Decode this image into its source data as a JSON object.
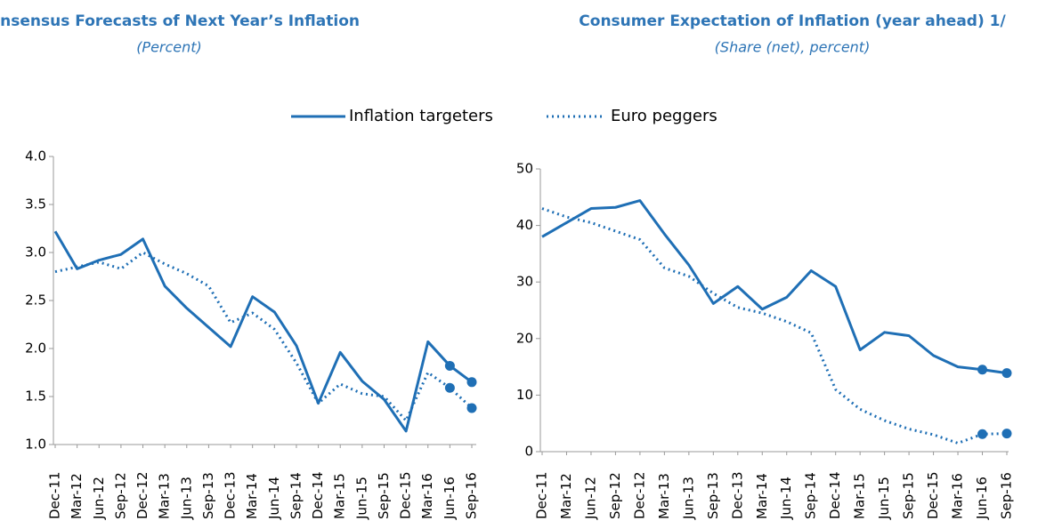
{
  "chart_data": [
    {
      "type": "line",
      "title": "Consensus Forecasts of Next Year’s Inflation",
      "subtitle": "(Percent)",
      "categories": [
        "Dec-11",
        "Mar-12",
        "Jun-12",
        "Sep-12",
        "Dec-12",
        "Mar-13",
        "Jun-13",
        "Sep-13",
        "Dec-13",
        "Mar-14",
        "Jun-14",
        "Sep-14",
        "Dec-14",
        "Mar-15",
        "Jun-15",
        "Sep-15",
        "Dec-15",
        "Mar-16",
        "Jun-16",
        "Sep-16"
      ],
      "series": [
        {
          "name": "Inflation targeters",
          "color": "#1f6fb5",
          "style": "solid",
          "values": [
            3.22,
            2.83,
            2.92,
            2.98,
            3.14,
            2.65,
            2.42,
            2.22,
            2.02,
            2.54,
            2.38,
            2.03,
            1.43,
            1.96,
            1.66,
            1.47,
            1.14,
            2.07,
            1.82,
            1.65
          ]
        },
        {
          "name": "Euro peggers",
          "color": "#1f6fb5",
          "style": "dotted",
          "values": [
            2.8,
            2.85,
            2.9,
            2.83,
            3.0,
            2.88,
            2.78,
            2.65,
            2.27,
            2.37,
            2.2,
            1.85,
            1.43,
            1.63,
            1.53,
            1.5,
            1.25,
            1.75,
            1.59,
            1.38
          ]
        }
      ],
      "highlight_last": 2,
      "ylim": [
        1,
        4
      ],
      "yticks": [
        {
          "value": 1,
          "label": "1.0"
        },
        1.5,
        {
          "value": 2,
          "label": "2.0"
        },
        2.5,
        {
          "value": 3,
          "label": "3.0"
        },
        3.5,
        {
          "value": 4,
          "label": "4.0"
        }
      ],
      "grid": false
    },
    {
      "type": "line",
      "title": "Consumer Expectation of Inflation (year ahead) 1/",
      "subtitle": "(Share (net), percent)",
      "categories": [
        "Dec-11",
        "Mar-12",
        "Jun-12",
        "Sep-12",
        "Dec-12",
        "Mar-13",
        "Jun-13",
        "Sep-13",
        "Dec-13",
        "Mar-14",
        "Jun-14",
        "Sep-14",
        "Dec-14",
        "Mar-15",
        "Jun-15",
        "Sep-15",
        "Dec-15",
        "Mar-16",
        "Jun-16",
        "Sep-16"
      ],
      "series": [
        {
          "color": "#1f6fb5",
          "style": "solid",
          "values": [
            38,
            40.5,
            43,
            43.2,
            44.4,
            38.5,
            33,
            26.2,
            29.2,
            25.2,
            27.3,
            32,
            29.2,
            18,
            21.1,
            20.5,
            17,
            15,
            14.5,
            13.9
          ]
        },
        {
          "color": "#1f6fb5",
          "style": "dotted",
          "values": [
            43,
            41.5,
            40.5,
            39,
            37.5,
            32.5,
            31,
            28,
            25.5,
            24.5,
            23,
            21,
            11,
            7.5,
            5.5,
            4,
            3,
            1.5,
            3.1,
            3.2
          ]
        }
      ],
      "highlight_last": 2,
      "ylim": [
        0,
        50
      ],
      "yticks": [
        0,
        10,
        20,
        30,
        40,
        50
      ],
      "grid": false
    }
  ]
}
